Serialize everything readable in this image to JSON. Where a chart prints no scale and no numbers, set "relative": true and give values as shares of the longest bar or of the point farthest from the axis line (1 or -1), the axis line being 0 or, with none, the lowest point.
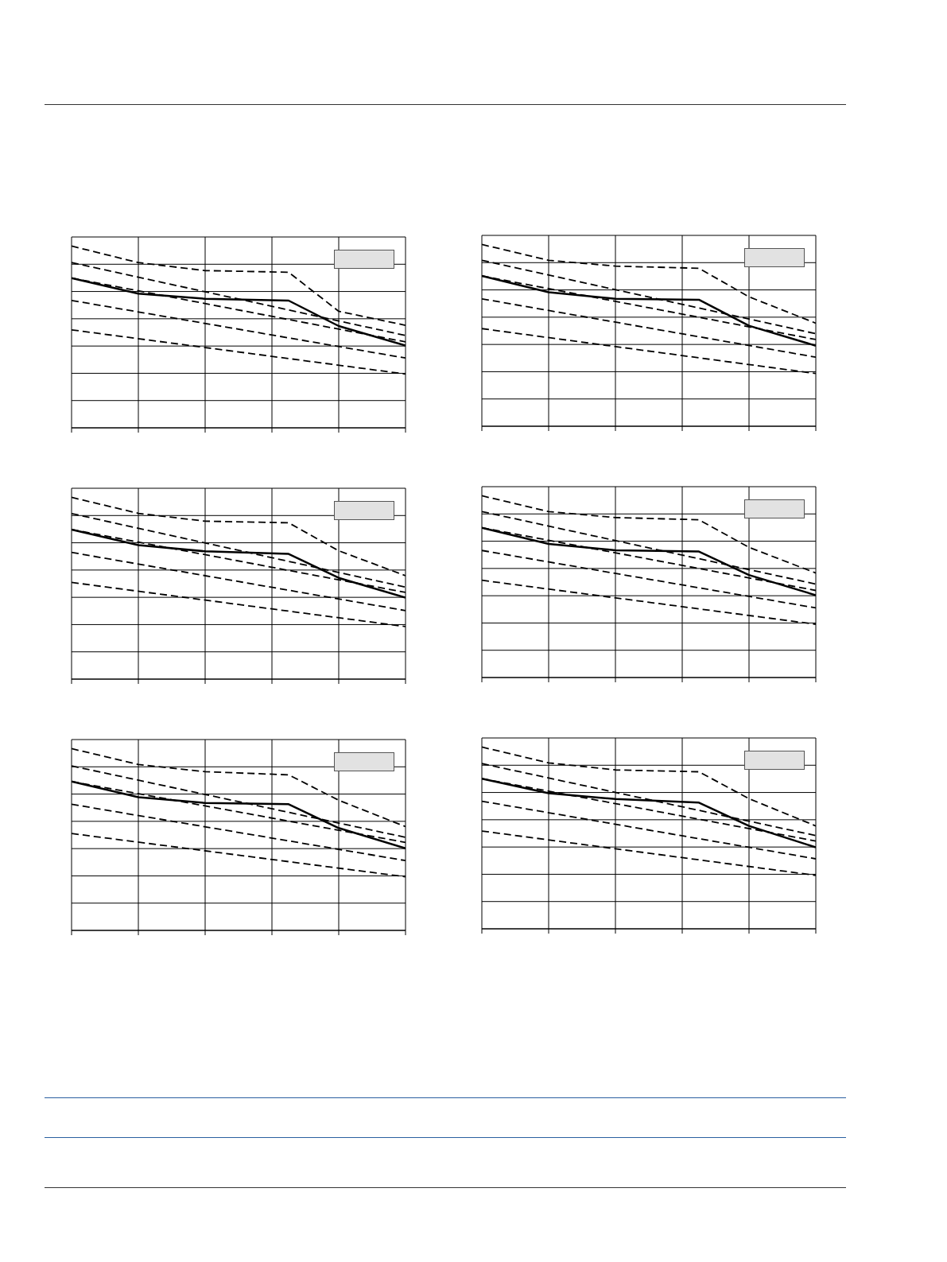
{
  "chart_data": [
    {
      "type": "line",
      "relative": true,
      "grid": true,
      "categories": [
        null,
        null,
        null,
        null,
        null,
        null,
        null,
        null,
        null,
        null,
        null,
        null,
        null,
        null,
        null,
        null,
        null,
        null,
        null,
        null,
        null
      ],
      "series": [
        {
          "color": "#000000",
          "line_style": "dashed",
          "values": [
            1,
            null,
            null,
            null,
            0.909,
            null,
            null,
            null,
            0.865,
            null,
            null,
            null,
            null,
            0.856,
            null,
            null,
            0.641,
            null,
            null,
            null,
            0.564
          ]
        },
        {
          "color": "#000000",
          "line_style": "solid",
          "values": [
            0.824,
            null,
            null,
            null,
            0.738,
            null,
            null,
            null,
            0.71,
            null,
            null,
            null,
            null,
            0.7,
            null,
            null,
            0.56,
            null,
            null,
            null,
            0.453
          ]
        },
        {
          "color": "#000000",
          "line_style": "dashed",
          "values": [
            0.909,
            null,
            null,
            null,
            null,
            null,
            null,
            null,
            null,
            null,
            null,
            null,
            null,
            null,
            null,
            null,
            null,
            null,
            null,
            null,
            0.508
          ]
        },
        {
          "color": "#000000",
          "line_style": "dashed",
          "values": [
            0.824,
            null,
            null,
            null,
            null,
            null,
            null,
            null,
            null,
            null,
            null,
            null,
            null,
            null,
            null,
            null,
            null,
            null,
            null,
            null,
            0.473
          ]
        },
        {
          "color": "#000000",
          "line_style": "dashed",
          "values": [
            0.701,
            null,
            null,
            null,
            null,
            null,
            null,
            null,
            null,
            null,
            null,
            null,
            null,
            null,
            null,
            null,
            null,
            null,
            null,
            null,
            0.384
          ]
        },
        {
          "color": "#000000",
          "line_style": "dashed",
          "values": [
            0.539,
            null,
            null,
            null,
            null,
            null,
            null,
            null,
            null,
            null,
            null,
            null,
            null,
            null,
            null,
            null,
            null,
            null,
            null,
            null,
            0.296
          ]
        }
      ]
    },
    {
      "type": "line",
      "relative": true,
      "grid": true,
      "categories": [
        null,
        null,
        null,
        null,
        null,
        null,
        null,
        null,
        null,
        null,
        null,
        null,
        null,
        null,
        null,
        null,
        null,
        null,
        null,
        null,
        null
      ],
      "series": [
        {
          "color": "#000000",
          "line_style": "dashed",
          "values": [
            1,
            null,
            null,
            null,
            0.913,
            null,
            null,
            null,
            0.881,
            null,
            null,
            null,
            null,
            0.869,
            null,
            null,
            0.712,
            null,
            null,
            null,
            0.567
          ]
        },
        {
          "color": "#000000",
          "line_style": "solid",
          "values": [
            0.827,
            null,
            null,
            null,
            0.737,
            null,
            null,
            null,
            0.701,
            null,
            null,
            null,
            null,
            0.696,
            null,
            null,
            0.553,
            null,
            null,
            null,
            0.443
          ]
        },
        {
          "color": "#000000",
          "line_style": "dashed",
          "values": [
            0.913,
            null,
            null,
            null,
            null,
            null,
            null,
            null,
            null,
            null,
            null,
            null,
            null,
            null,
            null,
            null,
            null,
            null,
            null,
            null,
            0.509
          ]
        },
        {
          "color": "#000000",
          "line_style": "dashed",
          "values": [
            0.827,
            null,
            null,
            null,
            null,
            null,
            null,
            null,
            null,
            null,
            null,
            null,
            null,
            null,
            null,
            null,
            null,
            null,
            null,
            null,
            0.477
          ]
        },
        {
          "color": "#000000",
          "line_style": "dashed",
          "values": [
            0.701,
            null,
            null,
            null,
            null,
            null,
            null,
            null,
            null,
            null,
            null,
            null,
            null,
            null,
            null,
            null,
            null,
            null,
            null,
            null,
            0.38
          ]
        },
        {
          "color": "#000000",
          "line_style": "dashed",
          "values": [
            0.537,
            null,
            null,
            null,
            null,
            null,
            null,
            null,
            null,
            null,
            null,
            null,
            null,
            null,
            null,
            null,
            null,
            null,
            null,
            null,
            0.29
          ]
        }
      ]
    },
    {
      "type": "line",
      "relative": true,
      "grid": true,
      "categories": [
        null,
        null,
        null,
        null,
        null,
        null,
        null,
        null,
        null,
        null,
        null,
        null,
        null,
        null,
        null,
        null,
        null,
        null,
        null,
        null,
        null
      ],
      "series": [
        {
          "color": "#000000",
          "line_style": "dashed",
          "values": [
            1,
            null,
            null,
            null,
            0.912,
            null,
            null,
            null,
            0.869,
            null,
            null,
            null,
            null,
            0.86,
            null,
            null,
            0.706,
            null,
            null,
            null,
            0.569
          ]
        },
        {
          "color": "#000000",
          "line_style": "solid",
          "values": [
            0.823,
            null,
            null,
            null,
            0.737,
            null,
            null,
            null,
            0.703,
            null,
            null,
            null,
            null,
            0.689,
            null,
            null,
            0.557,
            null,
            null,
            null,
            0.448
          ]
        },
        {
          "color": "#000000",
          "line_style": "dashed",
          "values": [
            0.911,
            null,
            null,
            null,
            null,
            null,
            null,
            null,
            null,
            null,
            null,
            null,
            null,
            null,
            null,
            null,
            null,
            null,
            null,
            null,
            0.506
          ]
        },
        {
          "color": "#000000",
          "line_style": "dashed",
          "values": [
            0.823,
            null,
            null,
            null,
            null,
            null,
            null,
            null,
            null,
            null,
            null,
            null,
            null,
            null,
            null,
            null,
            null,
            null,
            null,
            null,
            0.477
          ]
        },
        {
          "color": "#000000",
          "line_style": "dashed",
          "values": [
            0.697,
            null,
            null,
            null,
            null,
            null,
            null,
            null,
            null,
            null,
            null,
            null,
            null,
            null,
            null,
            null,
            null,
            null,
            null,
            null,
            0.377
          ]
        },
        {
          "color": "#000000",
          "line_style": "dashed",
          "values": [
            0.532,
            null,
            null,
            null,
            null,
            null,
            null,
            null,
            null,
            null,
            null,
            null,
            null,
            null,
            null,
            null,
            null,
            null,
            null,
            null,
            0.289
          ]
        }
      ]
    },
    {
      "type": "line",
      "relative": true,
      "grid": true,
      "categories": [
        null,
        null,
        null,
        null,
        null,
        null,
        null,
        null,
        null,
        null,
        null,
        null,
        null,
        null,
        null,
        null,
        null,
        null,
        null,
        null,
        null
      ],
      "series": [
        {
          "color": "#000000",
          "line_style": "dashed",
          "values": [
            1,
            null,
            null,
            null,
            0.913,
            null,
            null,
            null,
            0.88,
            null,
            null,
            null,
            null,
            0.868,
            null,
            null,
            0.716,
            null,
            null,
            null,
            0.575
          ]
        },
        {
          "color": "#000000",
          "line_style": "solid",
          "values": [
            0.824,
            null,
            null,
            null,
            0.735,
            null,
            null,
            null,
            0.7,
            null,
            null,
            null,
            null,
            0.693,
            null,
            null,
            0.564,
            null,
            null,
            null,
            0.453
          ]
        },
        {
          "color": "#000000",
          "line_style": "dashed",
          "values": [
            0.913,
            null,
            null,
            null,
            null,
            null,
            null,
            null,
            null,
            null,
            null,
            null,
            null,
            null,
            null,
            null,
            null,
            null,
            null,
            null,
            0.514
          ]
        },
        {
          "color": "#000000",
          "line_style": "dashed",
          "values": [
            0.824,
            null,
            null,
            null,
            null,
            null,
            null,
            null,
            null,
            null,
            null,
            null,
            null,
            null,
            null,
            null,
            null,
            null,
            null,
            null,
            0.479
          ]
        },
        {
          "color": "#000000",
          "line_style": "dashed",
          "values": [
            0.699,
            null,
            null,
            null,
            null,
            null,
            null,
            null,
            null,
            null,
            null,
            null,
            null,
            null,
            null,
            null,
            null,
            null,
            null,
            null,
            0.383
          ]
        },
        {
          "color": "#000000",
          "line_style": "dashed",
          "values": [
            0.535,
            null,
            null,
            null,
            null,
            null,
            null,
            null,
            null,
            null,
            null,
            null,
            null,
            null,
            null,
            null,
            null,
            null,
            null,
            null,
            0.293
          ]
        }
      ]
    },
    {
      "type": "line",
      "relative": true,
      "grid": true,
      "categories": [
        null,
        null,
        null,
        null,
        null,
        null,
        null,
        null,
        null,
        null,
        null,
        null,
        null,
        null,
        null,
        null,
        null,
        null,
        null,
        null,
        null
      ],
      "series": [
        {
          "color": "#000000",
          "line_style": "dashed",
          "values": [
            1,
            null,
            null,
            null,
            0.913,
            null,
            null,
            null,
            0.873,
            null,
            null,
            null,
            null,
            0.856,
            null,
            null,
            0.716,
            null,
            null,
            null,
            0.571
          ]
        },
        {
          "color": "#000000",
          "line_style": "solid",
          "values": [
            0.819,
            null,
            null,
            null,
            0.733,
            null,
            null,
            null,
            0.701,
            null,
            null,
            null,
            null,
            0.694,
            null,
            null,
            0.563,
            null,
            null,
            null,
            0.452
          ]
        },
        {
          "color": "#000000",
          "line_style": "dashed",
          "values": [
            0.905,
            null,
            null,
            null,
            null,
            null,
            null,
            null,
            null,
            null,
            null,
            null,
            null,
            null,
            null,
            null,
            null,
            null,
            null,
            null,
            0.512
          ]
        },
        {
          "color": "#000000",
          "line_style": "dashed",
          "values": [
            0.819,
            null,
            null,
            null,
            null,
            null,
            null,
            null,
            null,
            null,
            null,
            null,
            null,
            null,
            null,
            null,
            null,
            null,
            null,
            null,
            0.484
          ]
        },
        {
          "color": "#000000",
          "line_style": "dashed",
          "values": [
            0.694,
            null,
            null,
            null,
            null,
            null,
            null,
            null,
            null,
            null,
            null,
            null,
            null,
            null,
            null,
            null,
            null,
            null,
            null,
            null,
            0.384
          ]
        },
        {
          "color": "#000000",
          "line_style": "dashed",
          "values": [
            0.533,
            null,
            null,
            null,
            null,
            null,
            null,
            null,
            null,
            null,
            null,
            null,
            null,
            null,
            null,
            null,
            null,
            null,
            null,
            null,
            0.295
          ]
        }
      ]
    },
    {
      "type": "line",
      "relative": true,
      "grid": true,
      "categories": [
        null,
        null,
        null,
        null,
        null,
        null,
        null,
        null,
        null,
        null,
        null,
        null,
        null,
        null,
        null,
        null,
        null,
        null,
        null,
        null,
        null
      ],
      "series": [
        {
          "color": "#000000",
          "line_style": "dashed",
          "values": [
            1,
            null,
            null,
            null,
            0.913,
            null,
            null,
            null,
            0.874,
            null,
            null,
            null,
            null,
            0.864,
            null,
            null,
            0.716,
            null,
            null,
            null,
            0.566
          ]
        },
        {
          "color": "#000000",
          "line_style": "solid",
          "values": [
            0.826,
            null,
            null,
            null,
            0.746,
            null,
            null,
            null,
            0.714,
            null,
            null,
            null,
            null,
            0.694,
            null,
            null,
            0.566,
            null,
            null,
            null,
            0.448
          ]
        },
        {
          "color": "#000000",
          "line_style": "dashed",
          "values": [
            0.909,
            null,
            null,
            null,
            null,
            null,
            null,
            null,
            null,
            null,
            null,
            null,
            null,
            null,
            null,
            null,
            null,
            null,
            null,
            null,
            0.513
          ]
        },
        {
          "color": "#000000",
          "line_style": "dashed",
          "values": [
            0.826,
            null,
            null,
            null,
            null,
            null,
            null,
            null,
            null,
            null,
            null,
            null,
            null,
            null,
            null,
            null,
            null,
            null,
            null,
            null,
            0.483
          ]
        },
        {
          "color": "#000000",
          "line_style": "dashed",
          "values": [
            0.702,
            null,
            null,
            null,
            null,
            null,
            null,
            null,
            null,
            null,
            null,
            null,
            null,
            null,
            null,
            null,
            null,
            null,
            null,
            null,
            0.385
          ]
        },
        {
          "color": "#000000",
          "line_style": "dashed",
          "values": [
            0.538,
            null,
            null,
            null,
            null,
            null,
            null,
            null,
            null,
            null,
            null,
            null,
            null,
            null,
            null,
            null,
            null,
            null,
            null,
            null,
            0.294
          ]
        }
      ]
    }
  ]
}
